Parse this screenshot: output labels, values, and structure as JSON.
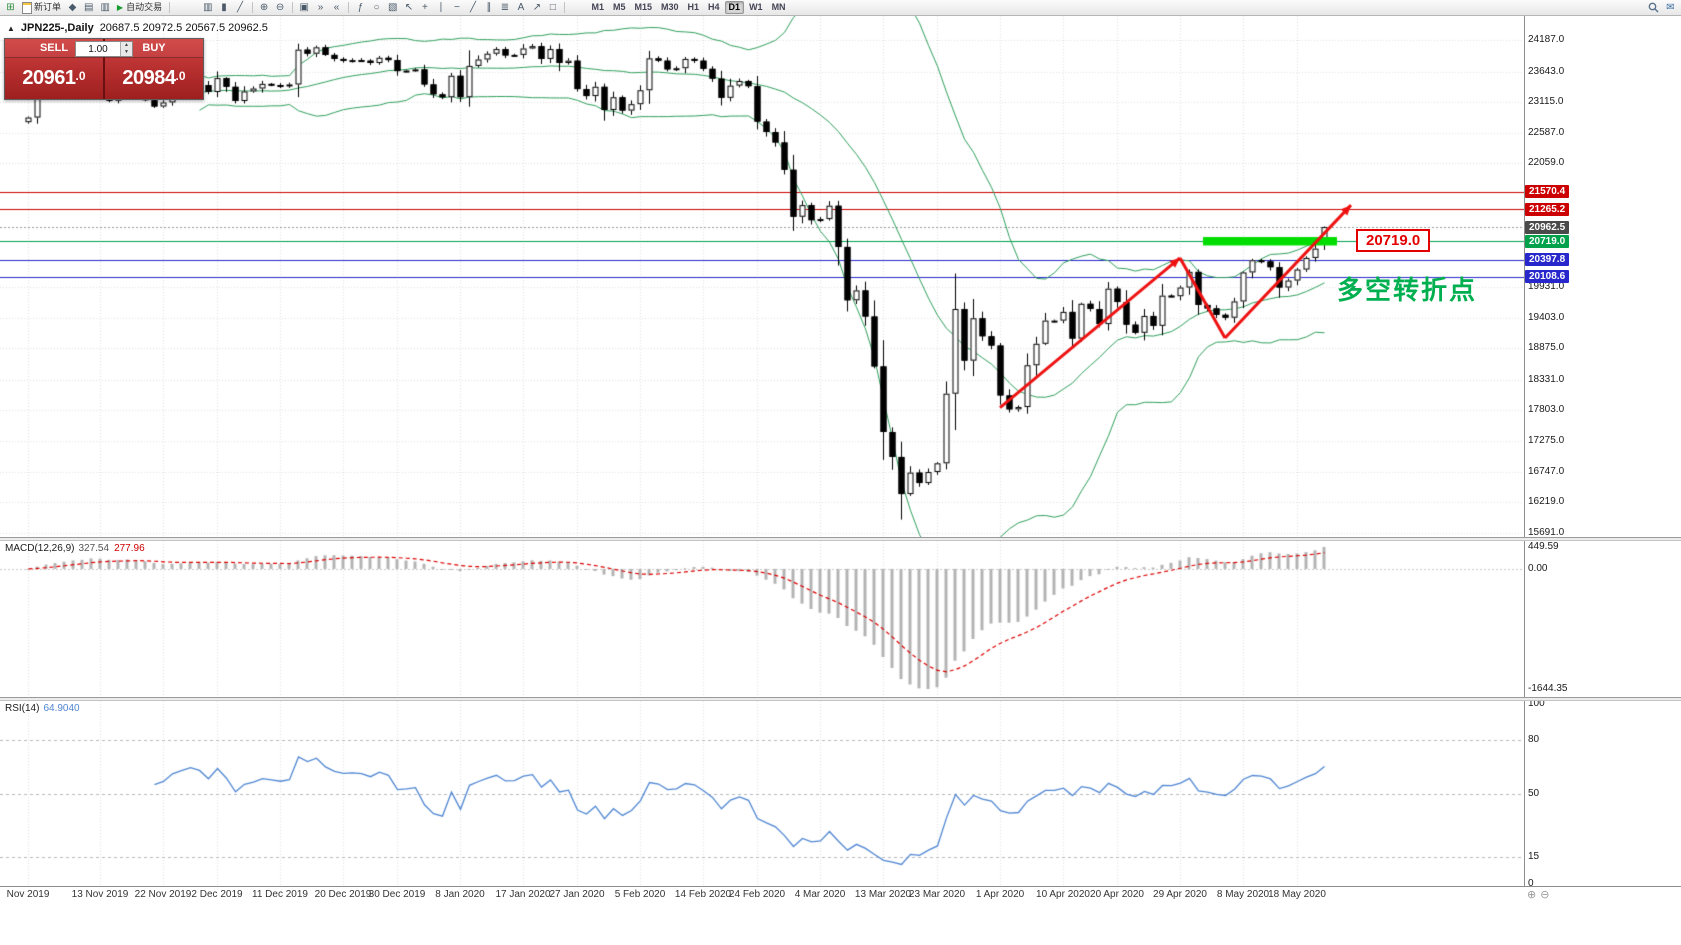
{
  "window": {
    "marker": "▲",
    "symbol_title": "JPN225-,Daily",
    "ohlc_text": "20687.5 20972.5 20567.5 20962.5"
  },
  "toolbar": {
    "new_chart": {
      "name": "new-chart-icon",
      "glyph": "⊞"
    },
    "new_order_label": "新订单",
    "small_icons": [
      {
        "name": "metaeditor-icon",
        "glyph": "◆"
      },
      {
        "name": "market-watch-icon",
        "glyph": "▤"
      },
      {
        "name": "data-window-icon",
        "glyph": "▥"
      }
    ],
    "autotrading_label": "自动交易",
    "autotrading_play_glyph": "▶",
    "chart_type_icons": [
      {
        "name": "bar-chart-icon",
        "glyph": "▥"
      },
      {
        "name": "candlestick-chart-icon",
        "glyph": "▮"
      },
      {
        "name": "line-chart-icon",
        "glyph": "╱"
      }
    ],
    "zoom_icons": [
      {
        "name": "zoom-in-icon",
        "glyph": "⊕"
      },
      {
        "name": "zoom-out-icon",
        "glyph": "⊖"
      }
    ],
    "window_icons": [
      {
        "name": "tile-windows-icon",
        "glyph": "▣"
      },
      {
        "name": "auto-scroll-icon",
        "glyph": "»"
      },
      {
        "name": "chart-shift-icon",
        "glyph": "«"
      }
    ],
    "tool_icons": [
      {
        "name": "indicators-icon",
        "glyph": "ƒ"
      },
      {
        "name": "periods-icon",
        "glyph": "○"
      },
      {
        "name": "templates-icon",
        "glyph": "▧"
      },
      {
        "name": "cursor-icon",
        "glyph": "↖"
      },
      {
        "name": "crosshair-icon",
        "glyph": "+"
      },
      {
        "name": "vertical-line-icon",
        "glyph": "∣"
      },
      {
        "name": "horizontal-line-icon",
        "glyph": "−"
      },
      {
        "name": "trendline-icon",
        "glyph": "╱"
      },
      {
        "name": "channel-icon",
        "glyph": "∥"
      },
      {
        "name": "fibonacci-icon",
        "glyph": "≣"
      },
      {
        "name": "text-icon",
        "glyph": "A"
      },
      {
        "name": "arrows-icon",
        "glyph": "↗"
      },
      {
        "name": "shapes-icon",
        "glyph": "□"
      }
    ],
    "timeframes": [
      "M1",
      "M5",
      "M15",
      "M30",
      "H1",
      "H4",
      "D1",
      "W1",
      "MN"
    ],
    "active_timeframe": "D1",
    "mail_glyph": "✉"
  },
  "trade_panel": {
    "sell_label": "SELL",
    "buy_label": "BUY",
    "volume": "1.00",
    "spin_up": "▲",
    "spin_down": "▼",
    "sell_price_main": "20961",
    "sell_price_frac": ".0",
    "buy_price_main": "20984",
    "buy_price_frac": ".0"
  },
  "price_scale": {
    "ticks": [
      "24187.0",
      "23643.0",
      "23115.0",
      "22587.0",
      "22059.0",
      "19931.0",
      "19403.0",
      "18875.0",
      "18331.0",
      "17803.0",
      "17275.0",
      "16747.0",
      "16219.0",
      "15691.0"
    ]
  },
  "macd": {
    "title": "MACD(12,26,9)",
    "main_value": "327.54",
    "signal_value": "277.96",
    "scale_max": "449.59",
    "scale_zero": "0.00",
    "scale_min": "-1644.35"
  },
  "rsi": {
    "title": "RSI(14)",
    "value": "64.9040",
    "levels": [
      "100",
      "80",
      "50",
      "15",
      "0"
    ],
    "level_values": [
      100,
      80,
      50,
      15,
      0
    ],
    "guide_levels": [
      80,
      50,
      15
    ]
  },
  "callout": {
    "text": "20719.0"
  },
  "annotation": {
    "text": "多空转折点"
  },
  "axis_zoom": {
    "in": "⊕",
    "out": "⊖"
  },
  "colors": {
    "bull": "#ffffff",
    "bear": "#000000",
    "outline": "#000000",
    "band_green": "#2e9e5b",
    "grid": "#e0e0e0",
    "hline_red": "#cc0000",
    "hline_blue": "#2727cc",
    "hline_green": "#00a14b",
    "tag_dark": "#4a4a4a",
    "current_price_line": "#9a9a9a",
    "macd_hist": "#b4b4b4",
    "macd_signal": "#dd0000",
    "macd_main_text": "#555555",
    "macd_signal_text": "#cc0000",
    "rsi_line": "#4f86d2",
    "arrow": "#ee1111",
    "rect": "#00dd00",
    "annotation": "#00b050",
    "callout": "#e30000"
  },
  "chart_data": {
    "type": "candlestick",
    "symbol": "JPN225-",
    "timeframe": "Daily",
    "last_ohlc": {
      "open": 20687.5,
      "high": 20972.5,
      "low": 20567.5,
      "close": 20962.5
    },
    "dates": [
      "2019-11-01",
      "2019-11-04",
      "2019-11-05",
      "2019-11-06",
      "2019-11-07",
      "2019-11-08",
      "2019-11-11",
      "2019-11-12",
      "2019-11-13",
      "2019-11-14",
      "2019-11-15",
      "2019-11-18",
      "2019-11-19",
      "2019-11-20",
      "2019-11-21",
      "2019-11-22",
      "2019-11-25",
      "2019-11-26",
      "2019-11-27",
      "2019-11-28",
      "2019-11-29",
      "2019-12-02",
      "2019-12-03",
      "2019-12-04",
      "2019-12-05",
      "2019-12-06",
      "2019-12-09",
      "2019-12-10",
      "2019-12-11",
      "2019-12-12",
      "2019-12-13",
      "2019-12-16",
      "2019-12-17",
      "2019-12-18",
      "2019-12-19",
      "2019-12-20",
      "2019-12-23",
      "2019-12-24",
      "2019-12-25",
      "2019-12-26",
      "2019-12-27",
      "2019-12-30",
      "2019-12-31",
      "2020-01-01",
      "2020-01-02",
      "2020-01-03",
      "2020-01-06",
      "2020-01-07",
      "2020-01-08",
      "2020-01-09",
      "2020-01-10",
      "2020-01-13",
      "2020-01-14",
      "2020-01-15",
      "2020-01-16",
      "2020-01-17",
      "2020-01-20",
      "2020-01-21",
      "2020-01-22",
      "2020-01-23",
      "2020-01-24",
      "2020-01-27",
      "2020-01-28",
      "2020-01-29",
      "2020-01-30",
      "2020-01-31",
      "2020-02-03",
      "2020-02-04",
      "2020-02-05",
      "2020-02-06",
      "2020-02-07",
      "2020-02-10",
      "2020-02-11",
      "2020-02-12",
      "2020-02-13",
      "2020-02-14",
      "2020-02-17",
      "2020-02-18",
      "2020-02-19",
      "2020-02-20",
      "2020-02-21",
      "2020-02-24",
      "2020-02-25",
      "2020-02-26",
      "2020-02-27",
      "2020-02-28",
      "2020-03-02",
      "2020-03-03",
      "2020-03-04",
      "2020-03-05",
      "2020-03-06",
      "2020-03-09",
      "2020-03-10",
      "2020-03-11",
      "2020-03-12",
      "2020-03-13",
      "2020-03-16",
      "2020-03-17",
      "2020-03-18",
      "2020-03-19",
      "2020-03-20",
      "2020-03-23",
      "2020-03-24",
      "2020-03-25",
      "2020-03-26",
      "2020-03-27",
      "2020-03-30",
      "2020-03-31",
      "2020-04-01",
      "2020-04-02",
      "2020-04-03",
      "2020-04-06",
      "2020-04-07",
      "2020-04-08",
      "2020-04-09",
      "2020-04-10",
      "2020-04-13",
      "2020-04-14",
      "2020-04-15",
      "2020-04-16",
      "2020-04-17",
      "2020-04-20",
      "2020-04-21",
      "2020-04-22",
      "2020-04-23",
      "2020-04-24",
      "2020-04-27",
      "2020-04-28",
      "2020-04-29",
      "2020-04-30",
      "2020-05-01",
      "2020-05-04",
      "2020-05-05",
      "2020-05-06",
      "2020-05-07",
      "2020-05-08",
      "2020-05-11",
      "2020-05-12",
      "2020-05-13",
      "2020-05-14",
      "2020-05-15",
      "2020-05-18",
      "2020-05-19",
      "2020-05-20",
      "2020-05-21"
    ],
    "closes": [
      22850,
      23250,
      23292,
      23300,
      23330,
      23390,
      23330,
      23520,
      23320,
      23140,
      23300,
      23420,
      23290,
      23150,
      23040,
      23110,
      23290,
      23373,
      23450,
      23410,
      23290,
      23530,
      23380,
      23135,
      23300,
      23350,
      23430,
      23410,
      23390,
      23420,
      24020,
      23950,
      24060,
      23930,
      23860,
      23830,
      23840,
      23830,
      23790,
      23880,
      23840,
      23650,
      23660,
      23680,
      23420,
      23250,
      23200,
      23570,
      23200,
      23740,
      23850,
      23950,
      24030,
      23920,
      23930,
      24040,
      24080,
      23860,
      24030,
      23790,
      23830,
      23340,
      23220,
      23380,
      22980,
      23200,
      22970,
      23080,
      23320,
      23870,
      23830,
      23680,
      23700,
      23860,
      23830,
      23690,
      23520,
      23190,
      23400,
      23480,
      23390,
      22780,
      22600,
      22420,
      21950,
      21140,
      21340,
      21080,
      21100,
      21330,
      20620,
      19700,
      19870,
      19420,
      18560,
      17430,
      17000,
      16360,
      16730,
      16550,
      16740,
      16890,
      18090,
      19550,
      18660,
      19390,
      19080,
      18920,
      18060,
      17820,
      17860,
      18580,
      18950,
      19350,
      19350,
      19500,
      19040,
      19640,
      19550,
      19290,
      19900,
      19670,
      19280,
      19140,
      19430,
      19260,
      19780,
      19770,
      19920,
      20190,
      19620,
      19560,
      19450,
      19400,
      19680,
      20180,
      20390,
      20370,
      20270,
      19920,
      20040,
      20230,
      20430,
      20590,
      20962.5
    ],
    "high_overrides": {
      "55": 24115
    },
    "low_overrides": {
      "97": 15920
    },
    "y_ticks": [
      24187.0,
      23643.0,
      23115.0,
      22587.0,
      22059.0,
      19931.0,
      19403.0,
      18875.0,
      18331.0,
      17803.0,
      17275.0,
      16747.0,
      16219.0,
      15691.0
    ],
    "hlines": [
      {
        "text": "21570.4",
        "price": 21570.4,
        "color": "#cc0000",
        "style": "solid",
        "tag_bg": "#cc0000"
      },
      {
        "text": "21265.2",
        "price": 21265.2,
        "color": "#cc0000",
        "style": "solid",
        "tag_bg": "#cc0000"
      },
      {
        "text": "20962.5",
        "price": 20962.5,
        "color": "#9a9a9a",
        "style": "dot",
        "tag_bg": "#4a4a4a"
      },
      {
        "text": "20719.0",
        "price": 20719.0,
        "color": "#00a14b",
        "style": "solid",
        "tag_bg": "#00a14b"
      },
      {
        "text": "20397.8",
        "price": 20397.8,
        "color": "#2727cc",
        "style": "solid",
        "tag_bg": "#2727cc"
      },
      {
        "text": "20108.6",
        "price": 20108.6,
        "color": "#2727cc",
        "style": "solid",
        "tag_bg": "#2727cc"
      }
    ],
    "rectangle": {
      "from_date": "2020-05-04",
      "to_date": "2020-05-21",
      "to_offset_bars": 1,
      "price_top": 20790,
      "price_bottom": 20645
    },
    "trend_arrows": [
      {
        "from": {
          "date": "2020-04-01",
          "price": 17850
        },
        "to": {
          "date": "2020-04-29",
          "price": 20430
        },
        "arrowhead": true
      },
      {
        "from": {
          "date": "2020-04-29",
          "price": 20430
        },
        "to": {
          "date": "2020-05-06",
          "price": 19050
        },
        "arrowhead": false
      },
      {
        "from": {
          "date": "2020-05-06",
          "price": 19050
        },
        "to": {
          "date": "2020-05-21",
          "price": 21340,
          "offset_bars": 3
        },
        "arrowhead": true
      }
    ],
    "indicators": {
      "bollinger": {
        "period": 20,
        "deviation": 2
      },
      "macd": {
        "fast": 12,
        "slow": 26,
        "signal": 9
      },
      "rsi": {
        "period": 14
      }
    },
    "time_labels": [
      {
        "text": "Nov 2019",
        "date": "2019-11-01"
      },
      {
        "text": "13 Nov 2019",
        "date": "2019-11-13"
      },
      {
        "text": "22 Nov 2019",
        "date": "2019-11-22"
      },
      {
        "text": "2 Dec 2019",
        "date": "2019-12-02"
      },
      {
        "text": "11 Dec 2019",
        "date": "2019-12-11"
      },
      {
        "text": "20 Dec 2019",
        "date": "2019-12-20"
      },
      {
        "text": "30 Dec 2019",
        "date": "2019-12-30"
      },
      {
        "text": "8 Jan 2020",
        "date": "2020-01-08"
      },
      {
        "text": "17 Jan 2020",
        "date": "2020-01-17"
      },
      {
        "text": "27 Jan 2020",
        "date": "2020-01-27"
      },
      {
        "text": "5 Feb 2020",
        "date": "2020-02-05"
      },
      {
        "text": "14 Feb 2020",
        "date": "2020-02-14"
      },
      {
        "text": "24 Feb 2020",
        "date": "2020-02-24"
      },
      {
        "text": "4 Mar 2020",
        "date": "2020-03-04"
      },
      {
        "text": "13 Mar 2020",
        "date": "2020-03-13"
      },
      {
        "text": "23 Mar 2020",
        "date": "2020-03-23"
      },
      {
        "text": "1 Apr 2020",
        "date": "2020-04-01"
      },
      {
        "text": "10 Apr 2020",
        "date": "2020-04-10"
      },
      {
        "text": "20 Apr 2020",
        "date": "2020-04-20"
      },
      {
        "text": "29 Apr 2020",
        "date": "2020-04-29"
      },
      {
        "text": "8 May 2020",
        "date": "2020-05-08"
      },
      {
        "text": "18 May 2020",
        "date": "2020-05-18"
      }
    ]
  }
}
